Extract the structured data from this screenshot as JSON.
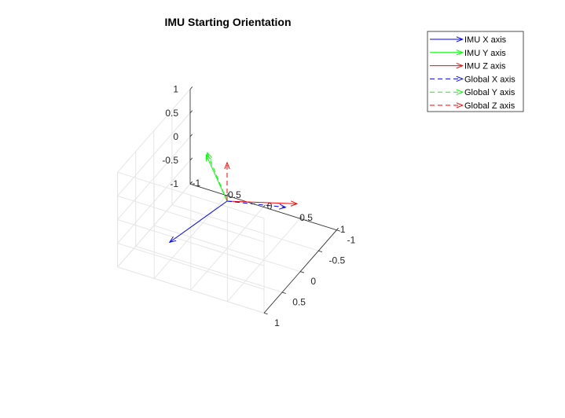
{
  "chart_data": {
    "type": "3d-quiver",
    "title": "IMU Starting Orientation",
    "xlabel": "",
    "ylabel": "",
    "zlabel": "",
    "xlim": [
      -1,
      1
    ],
    "ylim": [
      -1,
      1
    ],
    "zlim": [
      -1,
      1
    ],
    "x_ticks": [
      "-1",
      "-0.5",
      "0",
      "0.5",
      "1"
    ],
    "y_ticks": [
      "-1",
      "-0.5",
      "0",
      "0.5",
      "1"
    ],
    "z_ticks": [
      "-1",
      "-0.5",
      "0",
      "0.5",
      "1"
    ],
    "grid": true,
    "box": true,
    "legend_position": "top-right (outside axes)",
    "origin": [
      0,
      0,
      0
    ],
    "series": [
      {
        "name": "IMU X axis",
        "vector": [
          -0.53,
          0.5,
          -0.68
        ],
        "color": "#0000ff",
        "linestyle": "solid"
      },
      {
        "name": "IMU Y axis",
        "vector": [
          -0.58,
          -0.6,
          0.16
        ],
        "color": "#00ff00",
        "linestyle": "solid"
      },
      {
        "name": "IMU Z axis",
        "vector": [
          0.67,
          -0.56,
          -0.22
        ],
        "color": "#ff0000",
        "linestyle": "solid"
      },
      {
        "name": "Global X axis",
        "vector": [
          0.81,
          0.04,
          0.3
        ],
        "color": "#0000ff",
        "linestyle": "dashed"
      },
      {
        "name": "Global Y axis",
        "vector": [
          -0.65,
          -0.77,
          0.02
        ],
        "color": "#00ff00",
        "linestyle": "dashed"
      },
      {
        "name": "Global Z axis",
        "vector": [
          0,
          0,
          0.8
        ],
        "color": "#ff0000",
        "linestyle": "dashed"
      }
    ]
  }
}
